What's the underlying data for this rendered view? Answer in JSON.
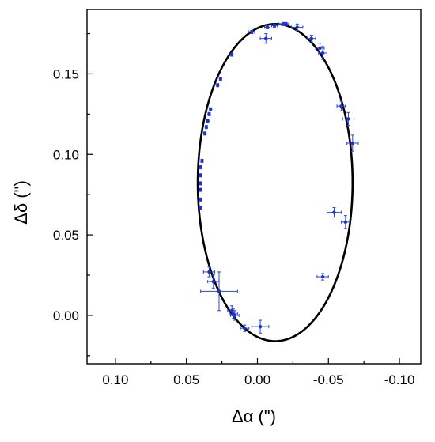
{
  "chart_data": {
    "type": "scatter",
    "title": "",
    "xlabel": "Δα (\")",
    "ylabel": "Δδ (\")",
    "xlim": [
      0.12,
      -0.115
    ],
    "ylim": [
      -0.03,
      0.19
    ],
    "x_ticks": [
      0.1,
      0.05,
      0.0,
      -0.05,
      -0.1
    ],
    "x_tick_labels": [
      "0.10",
      "0.05",
      "0.00",
      "-0.05",
      "-0.10"
    ],
    "y_ticks": [
      0.0,
      0.05,
      0.1,
      0.15
    ],
    "y_tick_labels": [
      "0.00",
      "0.05",
      "0.10",
      "0.15"
    ],
    "grid": false,
    "legend": "none",
    "colors": {
      "points": "#1f2fd6",
      "error_bars": "#2a48c9",
      "fit_curve": "#000000"
    },
    "series": [
      {
        "points": [
          {
            "x": 0.04,
            "y": 0.067,
            "xerr": 0.001,
            "yerr": 0.001
          },
          {
            "x": 0.04,
            "y": 0.072,
            "xerr": 0.001,
            "yerr": 0.001
          },
          {
            "x": 0.04,
            "y": 0.078,
            "xerr": 0.001,
            "yerr": 0.001
          },
          {
            "x": 0.04,
            "y": 0.082,
            "xerr": 0.001,
            "yerr": 0.001
          },
          {
            "x": 0.04,
            "y": 0.087,
            "xerr": 0.001,
            "yerr": 0.001
          },
          {
            "x": 0.04,
            "y": 0.092,
            "xerr": 0.001,
            "yerr": 0.001
          },
          {
            "x": 0.039,
            "y": 0.096,
            "xerr": 0.001,
            "yerr": 0.001
          },
          {
            "x": 0.037,
            "y": 0.113,
            "xerr": 0.001,
            "yerr": 0.001
          },
          {
            "x": 0.036,
            "y": 0.117,
            "xerr": 0.001,
            "yerr": 0.001
          },
          {
            "x": 0.035,
            "y": 0.121,
            "xerr": 0.001,
            "yerr": 0.001
          },
          {
            "x": 0.034,
            "y": 0.125,
            "xerr": 0.001,
            "yerr": 0.001
          },
          {
            "x": 0.033,
            "y": 0.128,
            "xerr": 0.001,
            "yerr": 0.001
          },
          {
            "x": 0.028,
            "y": 0.143,
            "xerr": 0.001,
            "yerr": 0.001
          },
          {
            "x": 0.026,
            "y": 0.147,
            "xerr": 0.001,
            "yerr": 0.001
          },
          {
            "x": 0.018,
            "y": 0.162,
            "xerr": 0.001,
            "yerr": 0.001
          },
          {
            "x": 0.004,
            "y": 0.176,
            "xerr": 0.002,
            "yerr": 0.001
          },
          {
            "x": -0.006,
            "y": 0.172,
            "xerr": 0.004,
            "yerr": 0.003
          },
          {
            "x": -0.007,
            "y": 0.179,
            "xerr": 0.002,
            "yerr": 0.001
          },
          {
            "x": -0.012,
            "y": 0.18,
            "xerr": 0.002,
            "yerr": 0.001
          },
          {
            "x": -0.018,
            "y": 0.181,
            "xerr": 0.003,
            "yerr": 0.001
          },
          {
            "x": -0.02,
            "y": 0.181,
            "xerr": 0.002,
            "yerr": 0.001
          },
          {
            "x": -0.028,
            "y": 0.179,
            "xerr": 0.004,
            "yerr": 0.002
          },
          {
            "x": -0.038,
            "y": 0.172,
            "xerr": 0.003,
            "yerr": 0.002
          },
          {
            "x": -0.044,
            "y": 0.166,
            "xerr": 0.003,
            "yerr": 0.003
          },
          {
            "x": -0.046,
            "y": 0.163,
            "xerr": 0.003,
            "yerr": 0.004
          },
          {
            "x": -0.059,
            "y": 0.13,
            "xerr": 0.003,
            "yerr": 0.003
          },
          {
            "x": -0.064,
            "y": 0.122,
            "xerr": 0.004,
            "yerr": 0.004
          },
          {
            "x": -0.067,
            "y": 0.107,
            "xerr": 0.004,
            "yerr": 0.005
          },
          {
            "x": -0.054,
            "y": 0.064,
            "xerr": 0.005,
            "yerr": 0.003
          },
          {
            "x": -0.062,
            "y": 0.058,
            "xerr": 0.003,
            "yerr": 0.004
          },
          {
            "x": -0.046,
            "y": 0.024,
            "xerr": 0.004,
            "yerr": 0.002
          },
          {
            "x": 0.034,
            "y": 0.027,
            "xerr": 0.004,
            "yerr": 0.003
          },
          {
            "x": 0.031,
            "y": 0.021,
            "xerr": 0.004,
            "yerr": 0.004
          },
          {
            "x": 0.027,
            "y": 0.015,
            "xerr": 0.013,
            "yerr": 0.012
          },
          {
            "x": 0.018,
            "y": 0.003,
            "xerr": 0.003,
            "yerr": 0.003
          },
          {
            "x": 0.017,
            "y": 0.001,
            "xerr": 0.003,
            "yerr": 0.003
          },
          {
            "x": 0.016,
            "y": 0.0,
            "xerr": 0.003,
            "yerr": 0.003
          },
          {
            "x": 0.009,
            "y": -0.008,
            "xerr": 0.003,
            "yerr": 0.002
          },
          {
            "x": -0.002,
            "y": -0.007,
            "xerr": 0.006,
            "yerr": 0.004
          }
        ]
      }
    ],
    "fit_ellipse": {
      "center_x": -0.0125,
      "center_y": 0.0825,
      "semi_axis_x": 0.0545,
      "semi_axis_y": 0.0985
    }
  }
}
